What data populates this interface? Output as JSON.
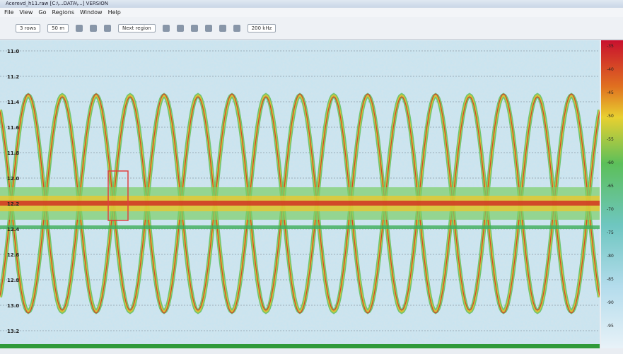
{
  "window": {
    "title": "Acerevd_h11.raw [C:\\...DATA\\...] VERSION"
  },
  "menu": [
    "File",
    "View",
    "Go",
    "Regions",
    "Window",
    "Help"
  ],
  "toolbar": [
    "3 rows",
    "50 m",
    "Next region",
    "200 kHz"
  ],
  "echogram": {
    "depth_labels": [
      "11.0",
      "11.2",
      "11.4",
      "11.6",
      "11.8",
      "12.0",
      "12.2",
      "12.4",
      "12.6",
      "12.8",
      "13.0",
      "13.2"
    ]
  },
  "colorbar": {
    "labels": [
      "-35",
      "-40",
      "-45",
      "-50",
      "-55",
      "-60",
      "-65",
      "-70",
      "-75",
      "-80",
      "-85",
      "-90",
      "-95"
    ]
  }
}
